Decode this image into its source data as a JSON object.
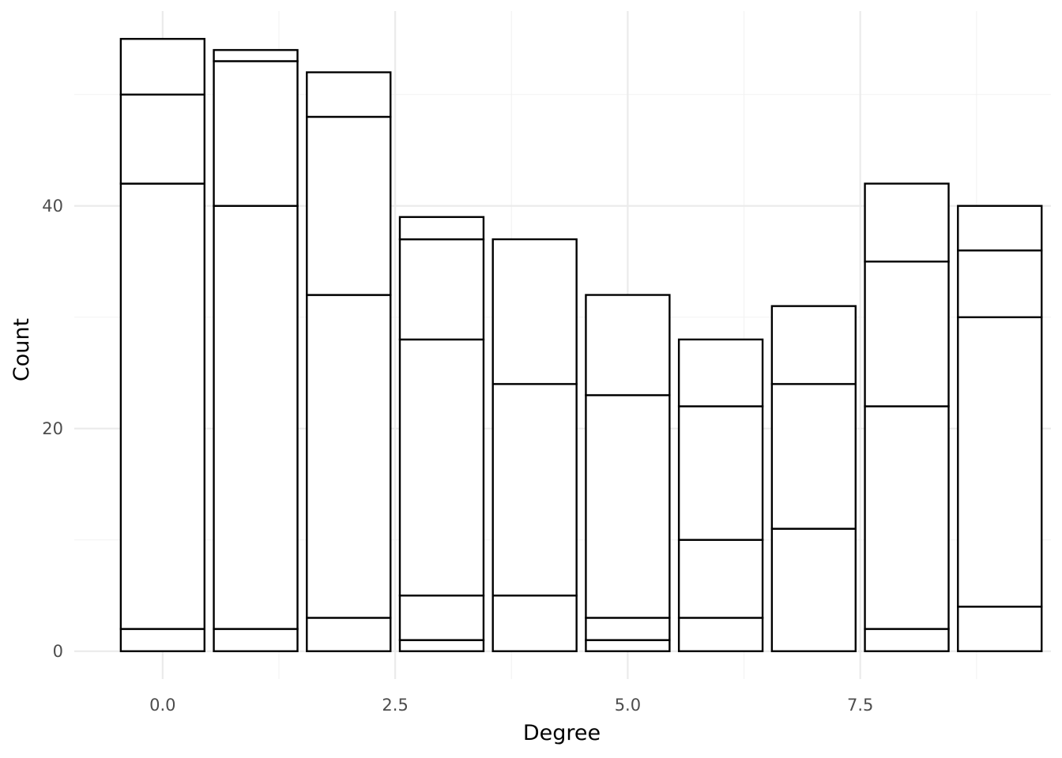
{
  "chart_data": {
    "type": "bar",
    "stacked": true,
    "xlabel": "Degree",
    "ylabel": "Count",
    "xlim": [
      -0.95,
      9.55
    ],
    "ylim": [
      -2.5,
      57.5
    ],
    "x_ticks": [
      0.0,
      2.5,
      5.0,
      7.5
    ],
    "x_tick_labels": [
      "0.0",
      "2.5",
      "5.0",
      "7.5"
    ],
    "y_ticks": [
      0,
      20,
      40
    ],
    "y_tick_labels": [
      "0",
      "20",
      "40"
    ],
    "bar_width": 0.9,
    "bars": [
      {
        "x": 0,
        "segments": [
          2,
          40,
          8,
          5
        ],
        "total": 55
      },
      {
        "x": 1,
        "segments": [
          2,
          38,
          13,
          1
        ],
        "total": 54
      },
      {
        "x": 2,
        "segments": [
          3,
          29,
          16,
          4
        ],
        "total": 52
      },
      {
        "x": 3,
        "segments": [
          1,
          4,
          23,
          9,
          2
        ],
        "total": 39
      },
      {
        "x": 4,
        "segments": [
          5,
          19,
          13
        ],
        "total": 37
      },
      {
        "x": 5,
        "segments": [
          1,
          2,
          20,
          9
        ],
        "total": 32
      },
      {
        "x": 6,
        "segments": [
          3,
          7,
          12,
          6
        ],
        "total": 28
      },
      {
        "x": 7,
        "segments": [
          11,
          13,
          7
        ],
        "total": 31
      },
      {
        "x": 8,
        "segments": [
          2,
          20,
          13,
          7
        ],
        "total": 42
      },
      {
        "x": 9,
        "segments": [
          4,
          26,
          6,
          4
        ],
        "total": 40
      }
    ],
    "grid": true,
    "legend": "none"
  }
}
